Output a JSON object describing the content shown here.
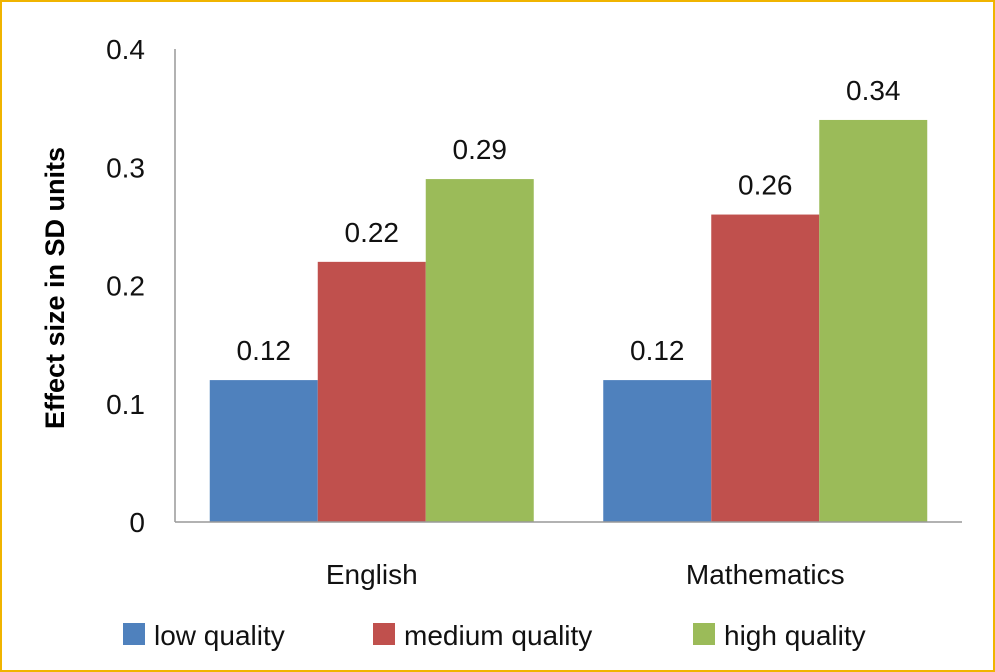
{
  "chart_data": {
    "type": "bar",
    "categories": [
      "English",
      "Mathematics"
    ],
    "series": [
      {
        "name": "low quality",
        "values": [
          0.12,
          0.12
        ],
        "color": "#4f81bd"
      },
      {
        "name": "medium quality",
        "values": [
          0.22,
          0.26
        ],
        "color": "#c0504d"
      },
      {
        "name": "high quality",
        "values": [
          0.29,
          0.34
        ],
        "color": "#9bbb59"
      }
    ],
    "data_labels": [
      [
        "0.12",
        "0.12"
      ],
      [
        "0.22",
        "0.26"
      ],
      [
        "0.29",
        "0.34"
      ]
    ],
    "yticks": [
      "0",
      "0.1",
      "0.2",
      "0.3",
      "0.4"
    ],
    "ylim": [
      0,
      0.4
    ],
    "title": "",
    "xlabel": "",
    "ylabel": "Effect size in SD units",
    "legend_position": "bottom",
    "grid": false
  },
  "colors": {
    "frame_border": "#f0b400",
    "axis": "#999999"
  }
}
